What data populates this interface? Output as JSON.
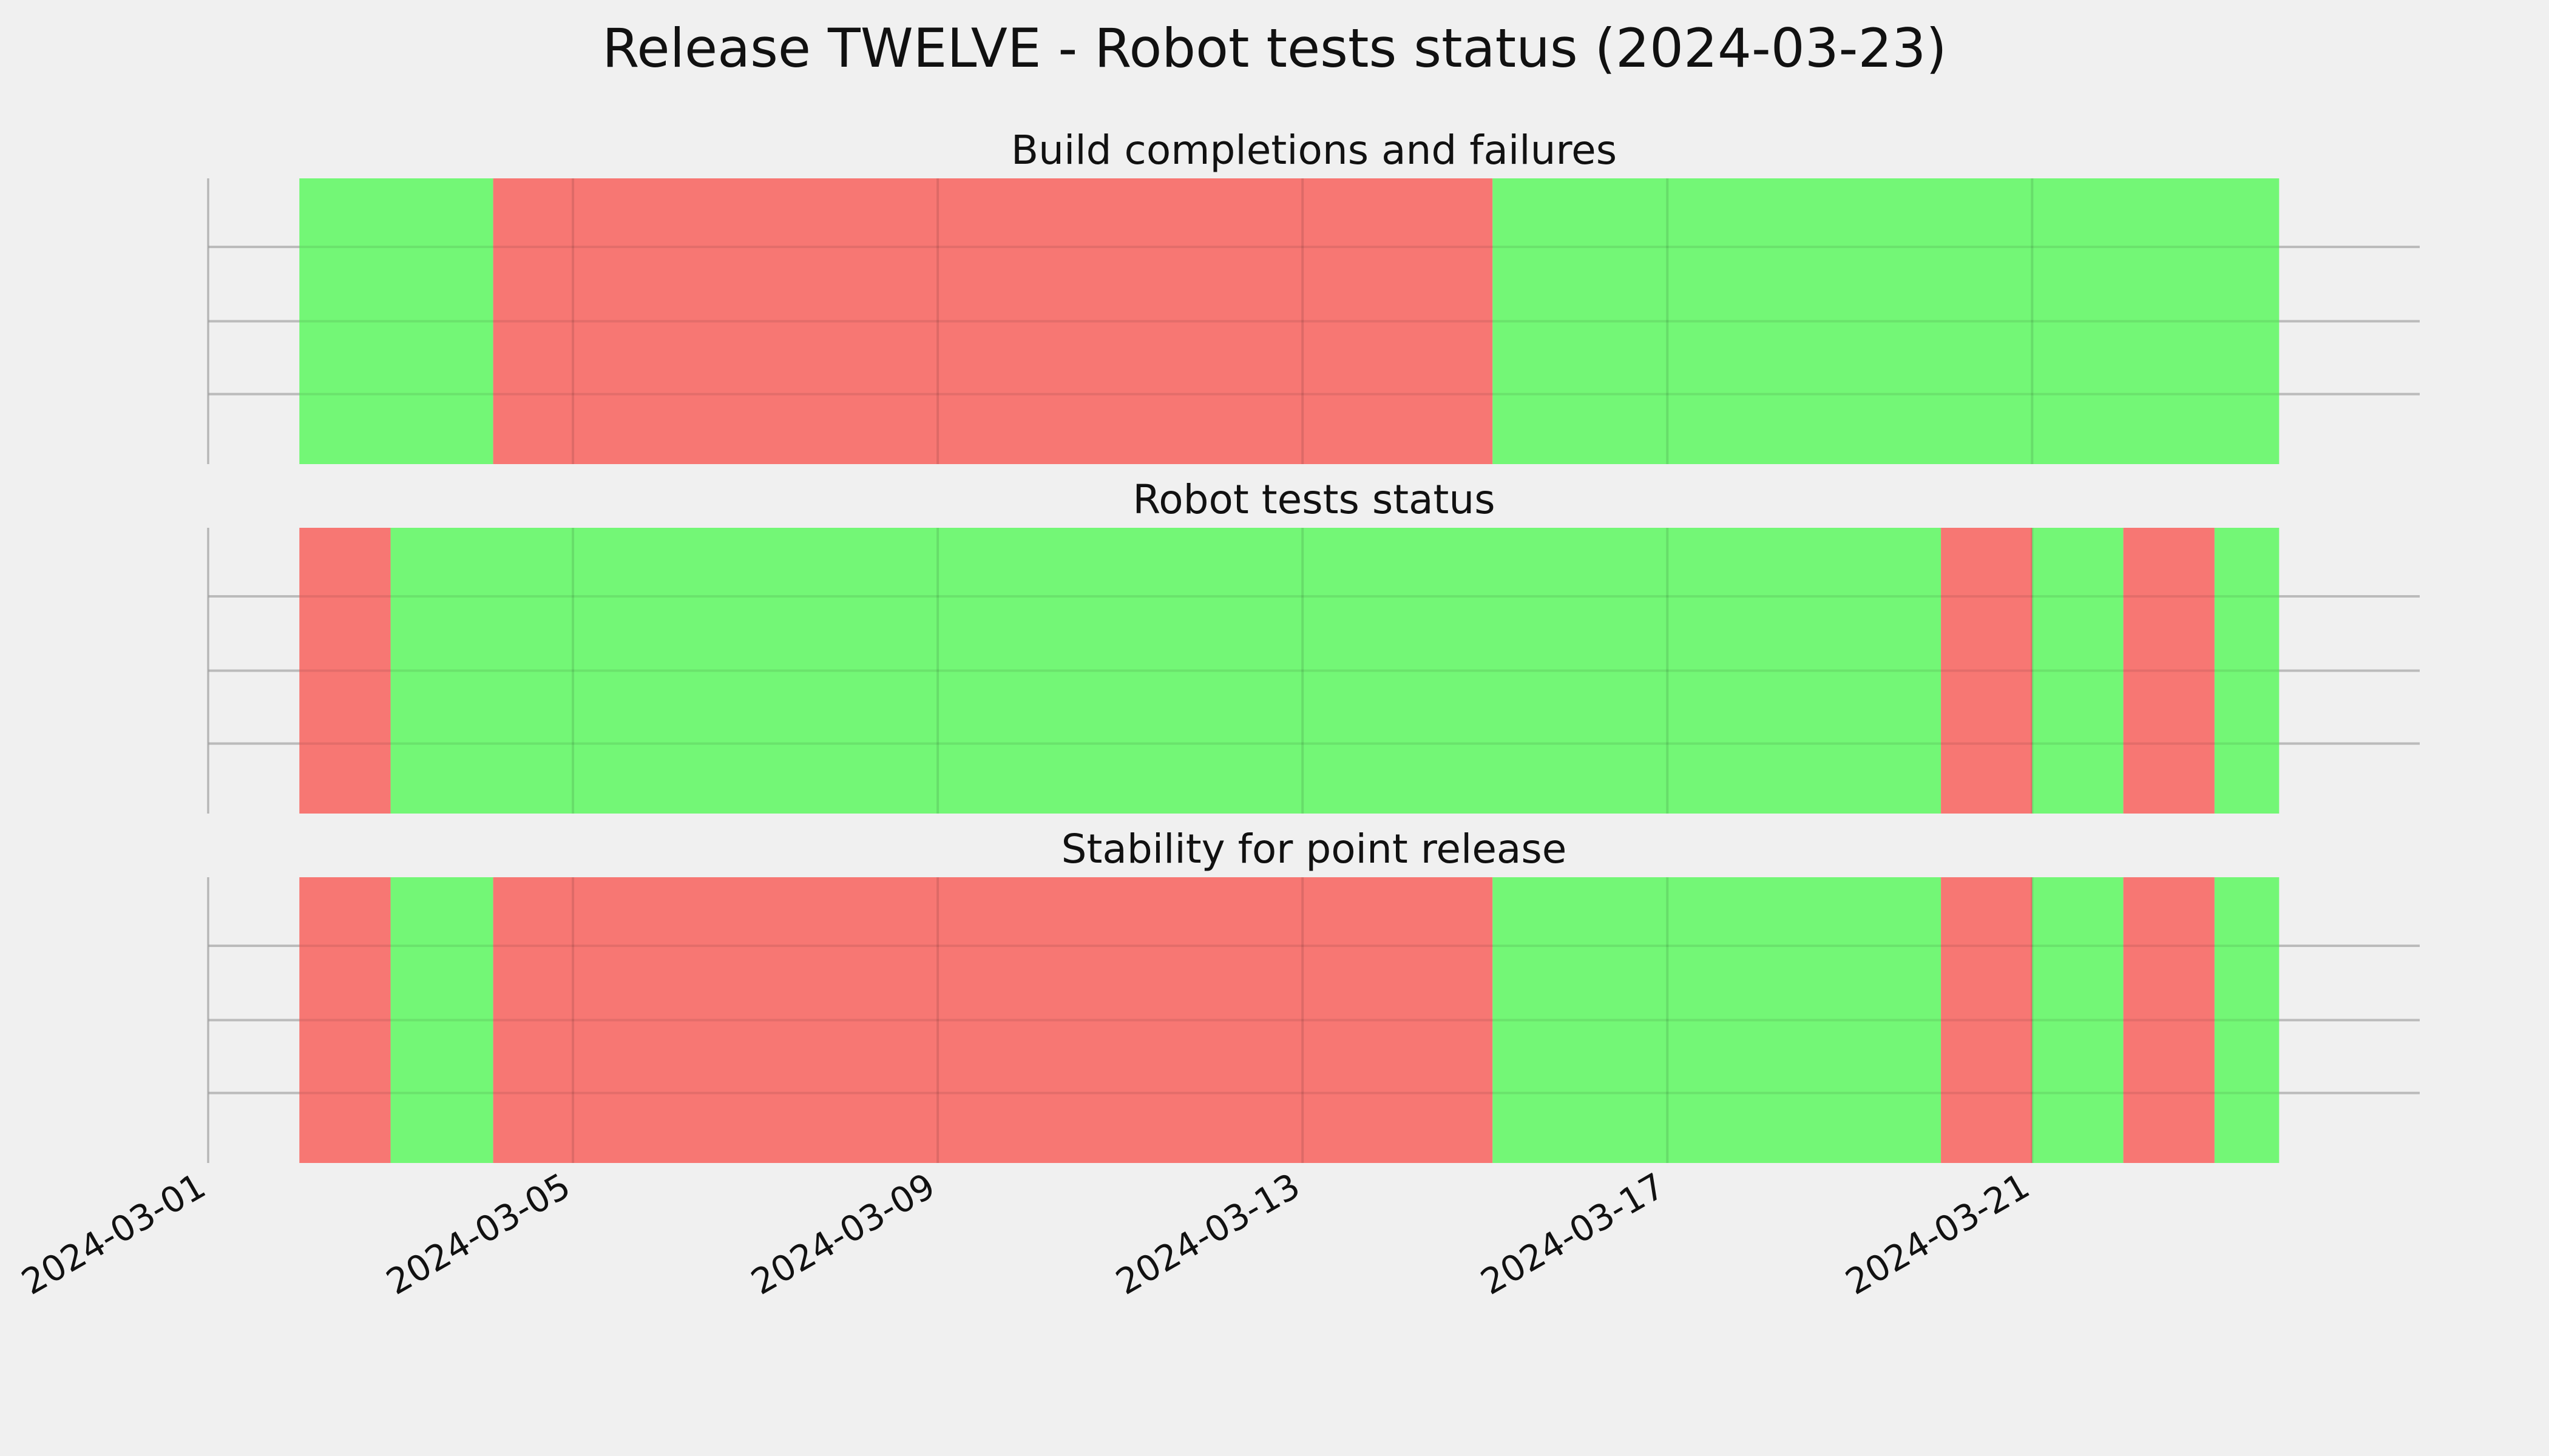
{
  "figure": {
    "title": "Release TWELVE - Robot tests status (2024-03-23)"
  },
  "colors": {
    "background": "#f0f0f0",
    "pass": "#73f776",
    "fail": "#f77773",
    "grid": "#cbcbcb",
    "text": "#111111"
  },
  "chart_data": {
    "type": "timeline",
    "xlabel": "",
    "ylabel": "",
    "x_axis": {
      "kind": "date",
      "range": [
        "2024-03-01",
        "2024-03-25T06:00"
      ],
      "ticks": [
        "2024-03-01",
        "2024-03-05",
        "2024-03-09",
        "2024-03-13",
        "2024-03-17",
        "2024-03-21"
      ],
      "tick_labels": [
        "2024-03-01",
        "2024-03-05",
        "2024-03-09",
        "2024-03-13",
        "2024-03-17",
        "2024-03-21"
      ]
    },
    "grid": true,
    "panels": [
      {
        "title": "Build completions and failures",
        "segments": [
          {
            "start": "2024-03-02",
            "end": "2024-03-04T03:00",
            "status": "pass"
          },
          {
            "start": "2024-03-04T03:00",
            "end": "2024-03-15T02:00",
            "status": "fail"
          },
          {
            "start": "2024-03-15T02:00",
            "end": "2024-03-23T17:00",
            "status": "pass"
          }
        ]
      },
      {
        "title": "Robot tests status",
        "segments": [
          {
            "start": "2024-03-02",
            "end": "2024-03-03",
            "status": "fail"
          },
          {
            "start": "2024-03-03",
            "end": "2024-03-20",
            "status": "pass"
          },
          {
            "start": "2024-03-20",
            "end": "2024-03-21",
            "status": "fail"
          },
          {
            "start": "2024-03-21",
            "end": "2024-03-22",
            "status": "pass"
          },
          {
            "start": "2024-03-22",
            "end": "2024-03-23",
            "status": "fail"
          },
          {
            "start": "2024-03-23",
            "end": "2024-03-23T17:00",
            "status": "pass"
          }
        ]
      },
      {
        "title": "Stability for point release",
        "segments": [
          {
            "start": "2024-03-02",
            "end": "2024-03-03",
            "status": "fail"
          },
          {
            "start": "2024-03-03",
            "end": "2024-03-04T03:00",
            "status": "pass"
          },
          {
            "start": "2024-03-04T03:00",
            "end": "2024-03-15T02:00",
            "status": "fail"
          },
          {
            "start": "2024-03-15T02:00",
            "end": "2024-03-20",
            "status": "pass"
          },
          {
            "start": "2024-03-20",
            "end": "2024-03-21",
            "status": "fail"
          },
          {
            "start": "2024-03-21",
            "end": "2024-03-22",
            "status": "pass"
          },
          {
            "start": "2024-03-22",
            "end": "2024-03-23",
            "status": "fail"
          },
          {
            "start": "2024-03-23",
            "end": "2024-03-23T17:00",
            "status": "pass"
          }
        ]
      }
    ]
  }
}
